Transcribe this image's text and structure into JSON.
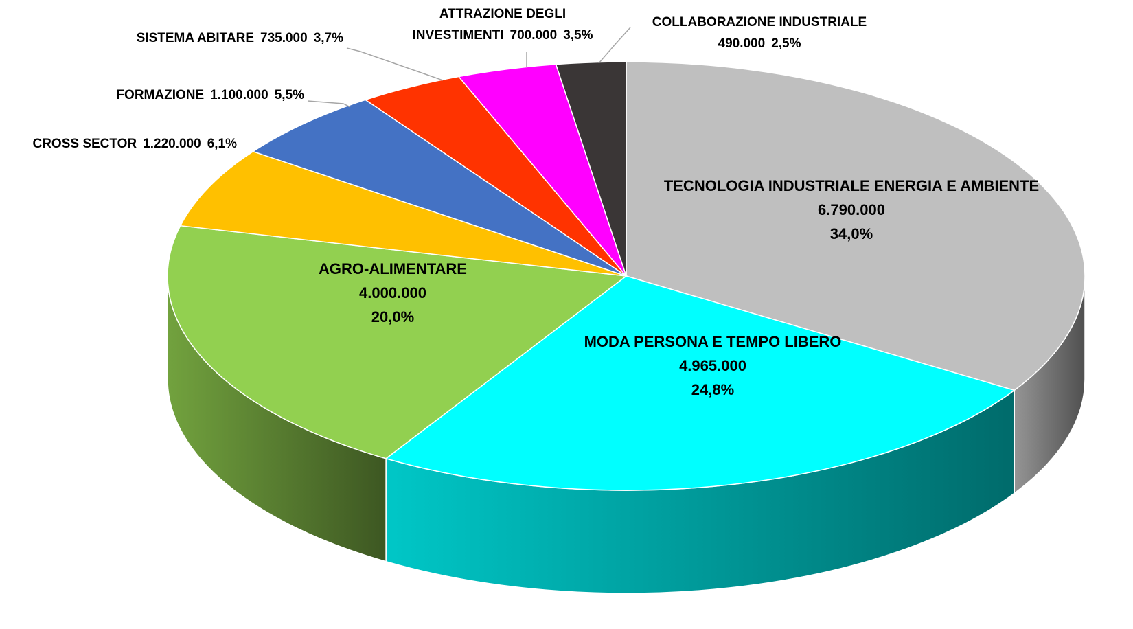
{
  "chart_data": {
    "type": "pie3d",
    "categories": [
      "TECNOLOGIA INDUSTRIALE ENERGIA E AMBIENTE",
      "MODA PERSONA E TEMPO LIBERO",
      "AGRO-ALIMENTARE",
      "CROSS SECTOR",
      "FORMAZIONE",
      "SISTEMA ABITARE",
      "ATTRAZIONE DEGLI INVESTIMENTI",
      "COLLABORAZIONE INDUSTRIALE"
    ],
    "values": [
      6790000,
      4965000,
      4000000,
      1220000,
      1100000,
      735000,
      700000,
      490000
    ],
    "value_labels": [
      "6.790.000",
      "4.965.000",
      "4.000.000",
      "1.220.000",
      "1.100.000",
      "735.000",
      "700.000",
      "490.000"
    ],
    "percentages": [
      34.0,
      24.8,
      20.0,
      6.1,
      5.5,
      3.7,
      3.5,
      2.5
    ],
    "percent_labels": [
      "34,0%",
      "24,8%",
      "20,0%",
      "6,1%",
      "5,5%",
      "3,7%",
      "3,5%",
      "2,5%"
    ],
    "colors": [
      "#bfbfbf",
      "#00ffff",
      "#92d050",
      "#ffc000",
      "#4472c4",
      "#ff3300",
      "#ff00ff",
      "#3a3636"
    ]
  }
}
